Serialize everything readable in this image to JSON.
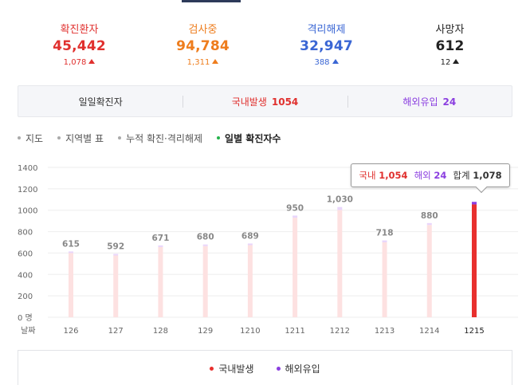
{
  "stats": [
    {
      "label": "확진환자",
      "value": "45,442",
      "change": "1,078",
      "color": "#e0302e"
    },
    {
      "label": "검사중",
      "value": "94,784",
      "change": "1,311",
      "color": "#ee7d1d"
    },
    {
      "label": "격리해제",
      "value": "32,947",
      "change": "388",
      "color": "#3a66d4"
    },
    {
      "label": "사망자",
      "value": "612",
      "change": "12",
      "color": "#222222"
    }
  ],
  "summary": {
    "daily_label": "일일확진자",
    "domestic_label": "국내발생",
    "domestic_value": "1054",
    "overseas_label": "해외유입",
    "overseas_value": "24"
  },
  "chart_tabs": [
    {
      "label": "지도",
      "active": false
    },
    {
      "label": "지역별 표",
      "active": false
    },
    {
      "label": "누적 확진·격리해제",
      "active": false
    },
    {
      "label": "일별 확진자수",
      "active": true
    }
  ],
  "tooltip": {
    "domestic_label": "국내",
    "domestic_value": "1,054",
    "overseas_label": "해외",
    "overseas_value": "24",
    "total_label": "합계",
    "total_value": "1,078"
  },
  "legend": {
    "domestic": "국내발생",
    "overseas": "해외유입"
  },
  "colors": {
    "domestic": "#e8302e",
    "overseas": "#8b3fe0",
    "faded_domestic": "#fde1e1",
    "faded_overseas": "#e9d6fb",
    "domestic_text": "#e0302e",
    "overseas_text": "#8b3fe0"
  },
  "chart_data": {
    "type": "bar",
    "stacked": true,
    "xlabel": "날짜",
    "y_unit": "명",
    "ylim": [
      0,
      1400
    ],
    "yticks": [
      0,
      200,
      400,
      600,
      800,
      1000,
      1200,
      1400
    ],
    "ytick_labels": [
      "0 명",
      "200",
      "400",
      "600",
      "800",
      "1000",
      "1200",
      "1400"
    ],
    "categories": [
      "126",
      "127",
      "128",
      "129",
      "1210",
      "1211",
      "1212",
      "1213",
      "1214",
      "1215"
    ],
    "totals": [
      "615",
      "592",
      "671",
      "680",
      "689",
      "950",
      "1,030",
      "718",
      "880",
      ""
    ],
    "highlight_index": 9,
    "series": [
      {
        "name": "국내발생",
        "values": [
          600,
          577,
          656,
          665,
          674,
          930,
          1002,
          700,
          862,
          1054
        ]
      },
      {
        "name": "해외유입",
        "values": [
          15,
          15,
          15,
          15,
          15,
          20,
          28,
          18,
          18,
          24
        ]
      }
    ]
  }
}
